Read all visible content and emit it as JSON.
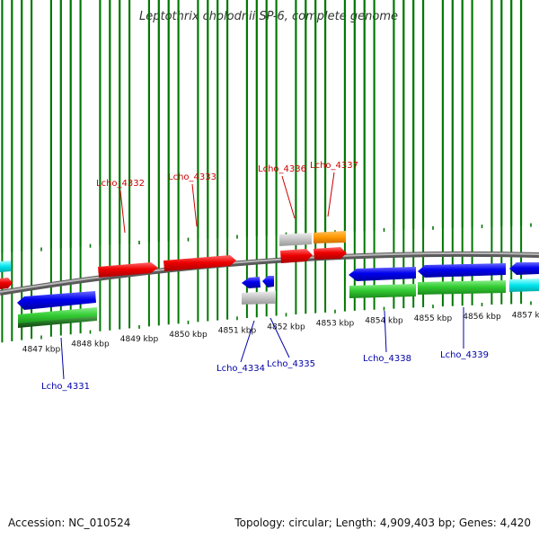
{
  "title": "Leptothrix cholodnii SP-6, complete genome",
  "footer": {
    "accession": "Accession: NC_010524",
    "info": "Topology: circular; Length: 4,909,403 bp; Genes: 4,420"
  },
  "colors": {
    "forward_label": "#cc0000",
    "reverse_label": "#0000aa",
    "tick": "#007700",
    "backbone": "#808080"
  },
  "ticks": [
    "4847 kbp",
    "4848 kbp",
    "4849 kbp",
    "4850 kbp",
    "4851 kbp",
    "4852 kbp",
    "4853 kbp",
    "4854 kbp",
    "4855 kbp",
    "4856 kbp",
    "4857 kbp"
  ],
  "forward_genes": [
    "Lcho_4332",
    "Lcho_4333",
    "Lcho_4336",
    "Lcho_4337"
  ],
  "reverse_genes": [
    "Lcho_4331",
    "Lcho_4334",
    "Lcho_4335",
    "Lcho_4338",
    "Lcho_4339"
  ]
}
